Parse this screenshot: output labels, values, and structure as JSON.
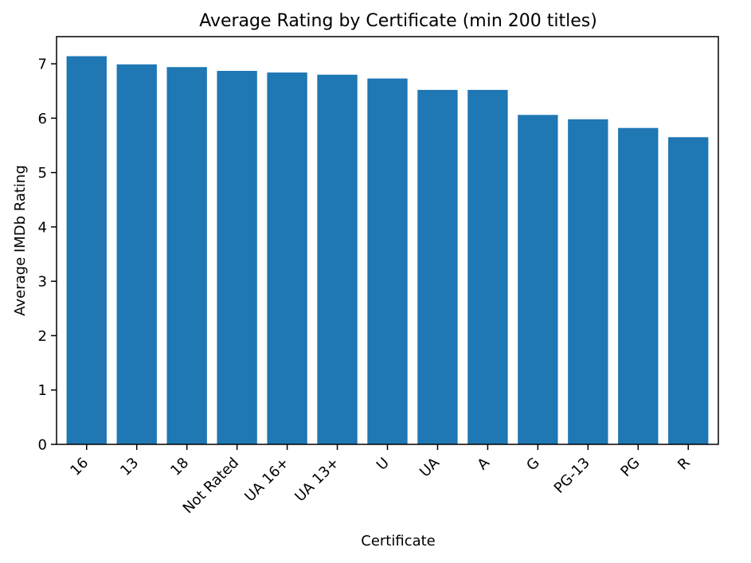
{
  "chart_data": {
    "type": "bar",
    "title": "Average Rating by Certificate (min 200 titles)",
    "xlabel": "Certificate",
    "ylabel": "Average IMDb Rating",
    "categories": [
      "16",
      "13",
      "18",
      "Not Rated",
      "UA 16+",
      "UA 13+",
      "U",
      "UA",
      "A",
      "G",
      "PG-13",
      "PG",
      "R"
    ],
    "values": [
      7.14,
      6.99,
      6.94,
      6.87,
      6.84,
      6.8,
      6.73,
      6.52,
      6.52,
      6.06,
      5.98,
      5.82,
      5.65
    ],
    "ylim": [
      0,
      7.5
    ],
    "yticks": [
      0,
      1,
      2,
      3,
      4,
      5,
      6,
      7
    ],
    "grid": false,
    "legend": "none",
    "bar_color": "#1f77b4",
    "axis_color": "#000000"
  }
}
